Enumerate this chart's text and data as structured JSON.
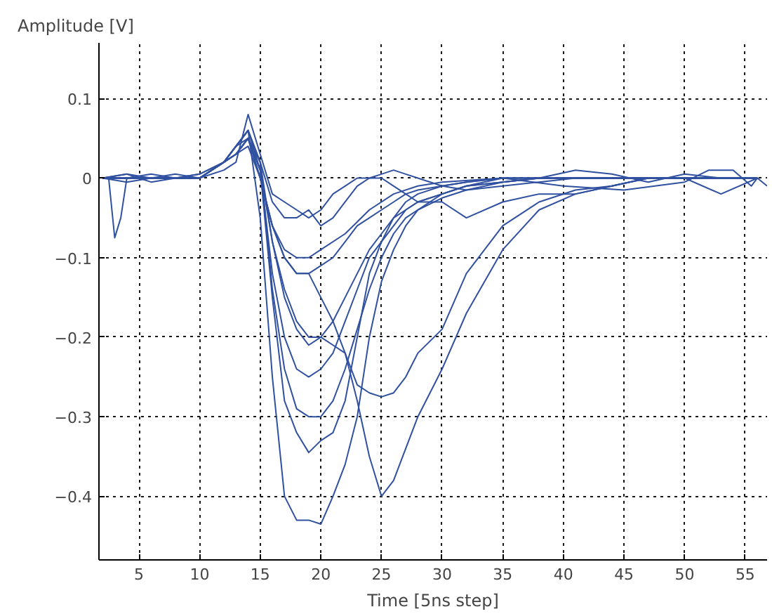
{
  "chart_data": {
    "type": "line",
    "xlabel": "Time [5ns step]",
    "ylabel": "Amplitude [V]",
    "xlim": [
      1.7,
      56.8
    ],
    "ylim": [
      -0.48,
      0.17
    ],
    "xticks": [
      5,
      10,
      15,
      20,
      25,
      30,
      35,
      40,
      45,
      50,
      55
    ],
    "yticks": [
      -0.4,
      -0.3,
      -0.2,
      -0.1,
      0,
      0.1
    ],
    "grid": true,
    "line_style": "solid",
    "x": [
      2,
      4,
      6,
      8,
      10,
      12,
      13,
      14,
      15,
      16,
      17,
      18,
      19,
      20,
      21,
      22,
      23,
      24,
      25,
      26,
      27,
      28,
      30,
      32,
      35,
      38,
      41,
      44,
      47,
      50,
      53,
      56
    ],
    "series": [
      {
        "color": "#3050a0",
        "values": [
          0,
          0.005,
          -0.005,
          0,
          0,
          0.02,
          0.04,
          0.05,
          0.0,
          -0.06,
          -0.1,
          -0.12,
          -0.12,
          -0.11,
          -0.1,
          -0.08,
          -0.06,
          -0.05,
          -0.04,
          -0.03,
          -0.02,
          -0.015,
          -0.01,
          -0.005,
          0,
          0,
          0,
          0,
          0,
          0,
          0,
          0
        ]
      },
      {
        "color": "#3050a0",
        "values": [
          0,
          0,
          0.005,
          0,
          0,
          0.02,
          0.04,
          0.06,
          0.02,
          -0.08,
          -0.15,
          -0.19,
          -0.21,
          -0.2,
          -0.18,
          -0.15,
          -0.12,
          -0.09,
          -0.07,
          -0.05,
          -0.04,
          -0.03,
          -0.02,
          -0.01,
          -0.005,
          0,
          0,
          0,
          0,
          0,
          0,
          0
        ]
      },
      {
        "color": "#3050a0",
        "values": [
          0,
          -0.005,
          0,
          0.005,
          0,
          0.02,
          0.03,
          0.05,
          0.01,
          -0.12,
          -0.2,
          -0.24,
          -0.25,
          -0.24,
          -0.22,
          -0.18,
          -0.14,
          -0.1,
          -0.08,
          -0.06,
          -0.04,
          -0.03,
          -0.02,
          -0.01,
          -0.005,
          0,
          0,
          0,
          0,
          0,
          0,
          0
        ]
      },
      {
        "color": "#3050a0",
        "values": [
          0,
          0,
          0,
          0,
          0.005,
          0.02,
          0.04,
          0.06,
          0.02,
          -0.14,
          -0.24,
          -0.29,
          -0.3,
          -0.3,
          -0.28,
          -0.24,
          -0.19,
          -0.14,
          -0.1,
          -0.07,
          -0.05,
          -0.04,
          -0.025,
          -0.015,
          -0.01,
          -0.005,
          0,
          0,
          0,
          0,
          0,
          0
        ]
      },
      {
        "color": "#3050a0",
        "values": [
          0,
          0,
          0,
          0,
          0,
          0.02,
          0.04,
          0.06,
          -0.05,
          -0.25,
          -0.4,
          -0.43,
          -0.43,
          -0.435,
          -0.4,
          -0.36,
          -0.3,
          -0.2,
          -0.13,
          -0.09,
          -0.06,
          -0.04,
          -0.02,
          -0.01,
          0,
          0,
          0,
          0,
          0,
          0,
          0,
          0
        ]
      },
      {
        "color": "#3050a0",
        "values": [
          0,
          0,
          0,
          0,
          0,
          0.02,
          0.04,
          0.06,
          0.01,
          -0.15,
          -0.28,
          -0.32,
          -0.345,
          -0.33,
          -0.32,
          -0.28,
          -0.2,
          -0.12,
          -0.08,
          -0.05,
          -0.03,
          -0.02,
          -0.01,
          -0.005,
          0,
          0,
          0,
          0,
          0,
          0,
          0,
          0
        ]
      },
      {
        "color": "#3050a0",
        "values": [
          0,
          0,
          0,
          0,
          0.005,
          0.02,
          0.03,
          0.04,
          0.0,
          -0.06,
          -0.1,
          -0.12,
          -0.12,
          -0.15,
          -0.18,
          -0.22,
          -0.28,
          -0.35,
          -0.4,
          -0.38,
          -0.34,
          -0.3,
          -0.24,
          -0.17,
          -0.09,
          -0.04,
          -0.02,
          -0.01,
          0,
          0,
          0,
          0
        ]
      },
      {
        "color": "#3050a0",
        "values": [
          0,
          0,
          0,
          0,
          0,
          0.02,
          0.03,
          0.05,
          0.01,
          -0.08,
          -0.14,
          -0.18,
          -0.2,
          -0.2,
          -0.21,
          -0.22,
          -0.26,
          -0.27,
          -0.275,
          -0.27,
          -0.25,
          -0.22,
          -0.19,
          -0.12,
          -0.06,
          -0.03,
          -0.015,
          -0.01,
          0,
          0,
          0,
          0
        ]
      },
      {
        "color": "#3050a0",
        "values": [
          0,
          0.005,
          0,
          0,
          0,
          0.02,
          0.03,
          0.05,
          0.02,
          -0.03,
          -0.05,
          -0.05,
          -0.04,
          -0.06,
          -0.05,
          -0.03,
          -0.01,
          0.0,
          0.005,
          0.01,
          0.005,
          0.0,
          -0.01,
          -0.015,
          -0.005,
          0,
          0.01,
          0.005,
          -0.005,
          0.005,
          0,
          0
        ]
      },
      {
        "color": "#3050a0",
        "x": [
          2,
          2.5,
          3,
          3.5,
          4,
          6,
          8,
          10,
          12,
          13,
          14,
          15,
          16,
          17,
          18,
          19,
          20,
          22,
          24,
          26,
          28,
          30,
          35,
          40,
          45,
          50,
          52,
          54,
          55.5,
          56,
          56.8
        ],
        "values": [
          0,
          0,
          -0.075,
          -0.05,
          0,
          0,
          0,
          0,
          0.02,
          0.03,
          0.05,
          0.0,
          -0.06,
          -0.09,
          -0.1,
          -0.1,
          -0.09,
          -0.07,
          -0.04,
          -0.02,
          -0.01,
          -0.005,
          0,
          -0.01,
          -0.015,
          -0.005,
          0.01,
          0.01,
          -0.01,
          0,
          -0.01
        ]
      },
      {
        "color": "#3050a0",
        "values": [
          0,
          0,
          0,
          0,
          0,
          0.01,
          0.02,
          0.08,
          0.03,
          -0.02,
          -0.03,
          -0.04,
          -0.05,
          -0.04,
          -0.02,
          -0.01,
          0.0,
          0.0,
          0.0,
          -0.01,
          -0.02,
          -0.03,
          -0.03,
          -0.05,
          -0.03,
          -0.02,
          -0.02,
          -0.01,
          0.0,
          0.0,
          -0.02,
          0.0
        ]
      }
    ]
  }
}
